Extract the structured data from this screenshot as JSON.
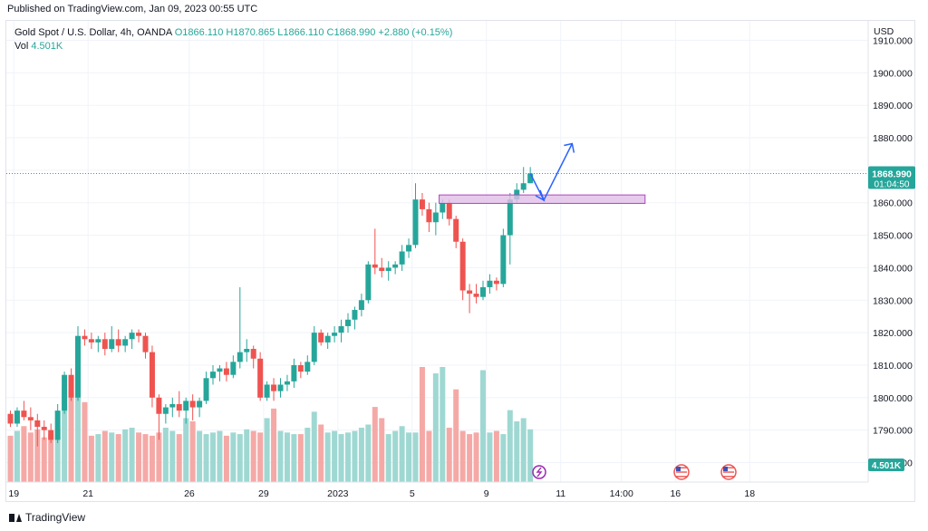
{
  "header": {
    "published": "Published on TradingView.com, Jan 09, 2023 00:55 UTC"
  },
  "legend": {
    "symbol": "Gold Spot / U.S. Dollar, 4h, OANDA",
    "open": "O1866.110",
    "high": "H1870.865",
    "low": "L1866.110",
    "close": "C1868.990",
    "change": "+2.880 (+0.15%)"
  },
  "volume": {
    "label": "Vol",
    "value": "4.501K"
  },
  "price_axis": {
    "currency": "USD",
    "last_price": "1868.990",
    "countdown": "01:04:50",
    "volume_badge": "4.501K"
  },
  "footer": {
    "brand": "TradingView"
  },
  "colors": {
    "up": "#26a69a",
    "down": "#ef5350",
    "zone": "#e1bee7",
    "arrow": "#2962ff"
  },
  "chart_data": {
    "type": "candlestick",
    "instrument": "Gold Spot / U.S. Dollar",
    "timeframe": "4h",
    "ylim": [
      1774,
      1916
    ],
    "y_ticks": [
      1780,
      1790,
      1800,
      1810,
      1820,
      1830,
      1840,
      1850,
      1860,
      1870,
      1880,
      1890,
      1900,
      1910
    ],
    "y_tick_labels": [
      "1780.000",
      "1790.000",
      "1800.000",
      "1810.000",
      "1820.000",
      "1830.000",
      "1840.000",
      "1850.000",
      "1860.000",
      "1870.000",
      "1880.000",
      "1890.000",
      "1900.000",
      "1910.000"
    ],
    "x_ticks": [
      {
        "label": "19",
        "i": 0.5
      },
      {
        "label": "21",
        "i": 11.5
      },
      {
        "label": "26",
        "i": 26.5
      },
      {
        "label": "29",
        "i": 37.5
      },
      {
        "label": "2023",
        "i": 48.5
      },
      {
        "label": "5",
        "i": 59.5
      },
      {
        "label": "9",
        "i": 70.5
      },
      {
        "label": "11",
        "i": 81.5
      },
      {
        "label": "14:00",
        "i": 90.5
      },
      {
        "label": "16",
        "i": 98.5
      },
      {
        "label": "18",
        "i": 109.5
      }
    ],
    "candles": [
      [
        1795,
        1796,
        1791,
        1792
      ],
      [
        1792,
        1797,
        1791,
        1796
      ],
      [
        1796,
        1799,
        1793,
        1794
      ],
      [
        1794,
        1797,
        1790,
        1793
      ],
      [
        1793,
        1795,
        1785,
        1791
      ],
      [
        1791,
        1793,
        1787,
        1790
      ],
      [
        1790,
        1792,
        1786,
        1787
      ],
      [
        1787,
        1798,
        1786,
        1796
      ],
      [
        1796,
        1808,
        1795,
        1807
      ],
      [
        1807,
        1809,
        1799,
        1800
      ],
      [
        1800,
        1822,
        1799,
        1819
      ],
      [
        1819,
        1821,
        1816,
        1818
      ],
      [
        1818,
        1820,
        1815,
        1817
      ],
      [
        1817,
        1819,
        1814,
        1818
      ],
      [
        1818,
        1820,
        1813,
        1815
      ],
      [
        1815,
        1822,
        1814,
        1818
      ],
      [
        1818,
        1821,
        1814,
        1816
      ],
      [
        1816,
        1819,
        1814,
        1818
      ],
      [
        1818,
        1821,
        1815,
        1820
      ],
      [
        1820,
        1821,
        1817,
        1819
      ],
      [
        1819,
        1820,
        1812,
        1814
      ],
      [
        1814,
        1816,
        1797,
        1800
      ],
      [
        1800,
        1801,
        1787,
        1795
      ],
      [
        1795,
        1798,
        1792,
        1797
      ],
      [
        1797,
        1800,
        1794,
        1798
      ],
      [
        1798,
        1802,
        1794,
        1796
      ],
      [
        1796,
        1800,
        1792,
        1799
      ],
      [
        1799,
        1801,
        1793,
        1797
      ],
      [
        1797,
        1800,
        1794,
        1799
      ],
      [
        1799,
        1808,
        1798,
        1806
      ],
      [
        1806,
        1810,
        1804,
        1808
      ],
      [
        1808,
        1810,
        1805,
        1809
      ],
      [
        1809,
        1811,
        1805,
        1807
      ],
      [
        1807,
        1813,
        1806,
        1811
      ],
      [
        1811,
        1834,
        1809,
        1814
      ],
      [
        1814,
        1818,
        1811,
        1815
      ],
      [
        1815,
        1816,
        1809,
        1812
      ],
      [
        1812,
        1814,
        1799,
        1800
      ],
      [
        1800,
        1805,
        1799,
        1804
      ],
      [
        1804,
        1806,
        1799,
        1802
      ],
      [
        1802,
        1806,
        1800,
        1804
      ],
      [
        1804,
        1807,
        1802,
        1805
      ],
      [
        1805,
        1812,
        1803,
        1810
      ],
      [
        1810,
        1811,
        1806,
        1808
      ],
      [
        1808,
        1813,
        1807,
        1811
      ],
      [
        1811,
        1822,
        1810,
        1820
      ],
      [
        1820,
        1821,
        1816,
        1817
      ],
      [
        1817,
        1820,
        1815,
        1819
      ],
      [
        1819,
        1822,
        1817,
        1820
      ],
      [
        1820,
        1824,
        1817,
        1822
      ],
      [
        1822,
        1826,
        1820,
        1824
      ],
      [
        1824,
        1828,
        1821,
        1827
      ],
      [
        1827,
        1832,
        1825,
        1830
      ],
      [
        1830,
        1842,
        1829,
        1841
      ],
      [
        1841,
        1852,
        1838,
        1840
      ],
      [
        1840,
        1843,
        1837,
        1839
      ],
      [
        1839,
        1842,
        1836,
        1840
      ],
      [
        1840,
        1842,
        1838,
        1841
      ],
      [
        1841,
        1847,
        1839,
        1845
      ],
      [
        1845,
        1849,
        1843,
        1847
      ],
      [
        1847,
        1866,
        1846,
        1861
      ],
      [
        1861,
        1863,
        1856,
        1858
      ],
      [
        1858,
        1860,
        1851,
        1854
      ],
      [
        1854,
        1860,
        1850,
        1857
      ],
      [
        1857,
        1861,
        1855,
        1860
      ],
      [
        1860,
        1861,
        1853,
        1855
      ],
      [
        1855,
        1856,
        1846,
        1848
      ],
      [
        1848,
        1849,
        1830,
        1833
      ],
      [
        1833,
        1835,
        1826,
        1832
      ],
      [
        1832,
        1835,
        1829,
        1831
      ],
      [
        1831,
        1836,
        1830,
        1834
      ],
      [
        1834,
        1838,
        1832,
        1836
      ],
      [
        1836,
        1837,
        1833,
        1835
      ],
      [
        1835,
        1852,
        1834,
        1850
      ],
      [
        1850,
        1863,
        1841,
        1861
      ],
      [
        1861,
        1866,
        1860,
        1864
      ],
      [
        1864,
        1871,
        1863,
        1866
      ],
      [
        1866,
        1871,
        1866,
        1869
      ]
    ],
    "volume_range": [
      0,
      3.6
    ],
    "volumes": [
      1.45,
      1.6,
      1.75,
      1.55,
      1.65,
      1.4,
      1.5,
      1.65,
      2.9,
      2.85,
      3.4,
      2.5,
      1.45,
      1.5,
      1.6,
      1.55,
      1.5,
      1.65,
      1.7,
      1.55,
      1.5,
      1.45,
      1.55,
      1.7,
      1.6,
      1.5,
      2.0,
      1.9,
      1.6,
      1.5,
      1.55,
      1.6,
      1.45,
      1.55,
      1.5,
      1.65,
      1.6,
      1.55,
      2.0,
      2.3,
      1.6,
      1.55,
      1.5,
      1.5,
      1.7,
      2.2,
      1.8,
      1.55,
      1.6,
      1.5,
      1.55,
      1.6,
      1.7,
      1.8,
      2.35,
      2.0,
      1.5,
      1.6,
      1.75,
      1.55,
      1.55,
      3.7,
      1.6,
      3.4,
      3.6,
      1.7,
      2.9,
      1.6,
      1.5,
      1.55,
      3.5,
      1.55,
      1.6,
      1.5,
      2.25,
      1.9,
      2.0,
      1.65
    ],
    "resistance_zone": [
      1859.8,
      1862.4
    ],
    "last_price": 1868.99
  }
}
